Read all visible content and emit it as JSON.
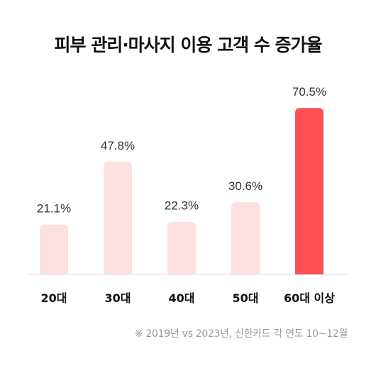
{
  "chart_data": {
    "type": "bar",
    "title": "피부 관리·마사지 이용 고객 수 증가율",
    "categories": [
      "20대",
      "30대",
      "40대",
      "50대",
      "60대 이상"
    ],
    "values": [
      21.1,
      47.8,
      22.3,
      30.6,
      70.5
    ],
    "value_labels": [
      "21.1%",
      "47.8%",
      "22.3%",
      "30.6%",
      "70.5%"
    ],
    "ylim": [
      0,
      80
    ],
    "grid": false,
    "highlight_index": 4,
    "colors": {
      "bar": "#fde0e0",
      "highlight": "#ff4f55",
      "baseline": "#e6e6e6"
    }
  },
  "footnote": "※ 2019년 vs 2023년, 신한카드 각 연도 10~12월"
}
